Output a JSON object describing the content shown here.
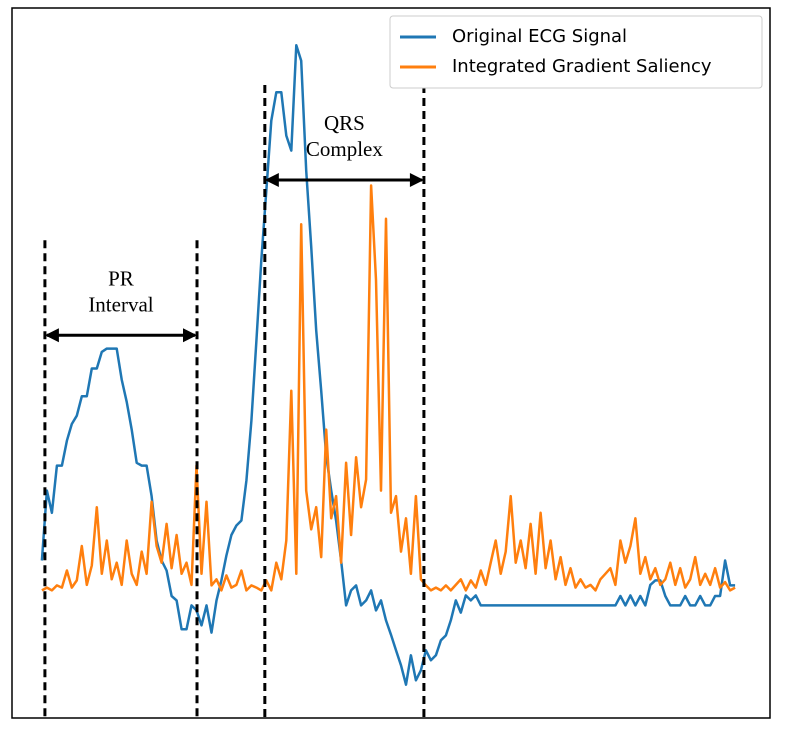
{
  "chart_data": {
    "type": "line",
    "x": [
      0,
      1,
      2,
      3,
      4,
      5,
      6,
      7,
      8,
      9,
      10,
      11,
      12,
      13,
      14,
      15,
      16,
      17,
      18,
      19,
      20,
      21,
      22,
      23,
      24,
      25,
      26,
      27,
      28,
      29,
      30,
      31,
      32,
      33,
      34,
      35,
      36,
      37,
      38,
      39,
      40,
      41,
      42,
      43,
      44,
      45,
      46,
      47,
      48,
      49,
      50,
      51,
      52,
      53,
      54,
      55,
      56,
      57,
      58,
      59,
      60,
      61,
      62,
      63,
      64,
      65,
      66,
      67,
      68,
      69,
      70,
      71,
      72,
      73,
      74,
      75,
      76,
      77,
      78,
      79,
      80,
      81,
      82,
      83,
      84,
      85,
      86,
      87,
      88,
      89,
      90,
      91,
      92,
      93,
      94,
      95,
      96,
      97,
      98,
      99,
      100,
      101,
      102,
      103,
      104,
      105,
      106,
      107,
      108,
      109,
      110,
      111,
      112,
      113,
      114,
      115,
      116,
      117,
      118,
      119,
      120,
      121,
      122,
      123,
      124,
      125,
      126,
      127,
      128,
      129,
      130,
      131,
      132,
      133,
      134,
      135,
      136,
      137,
      138,
      139
    ],
    "series": [
      {
        "name": "Original ECG Signal",
        "color": "#1f77b4",
        "values": [
          5.4,
          18,
          14,
          22.5,
          22.5,
          27,
          30,
          31.5,
          35,
          35,
          40,
          40,
          43,
          43.6,
          43.6,
          43.6,
          38,
          34,
          29,
          23,
          22.5,
          22.5,
          17,
          9,
          5.4,
          3.6,
          -1,
          -1.8,
          -7,
          -7,
          -2.7,
          -3.6,
          -6.3,
          -2.7,
          -7.6,
          -1.8,
          1.8,
          6.3,
          10,
          11.7,
          12.6,
          19.8,
          30.6,
          45,
          59.5,
          72,
          84.7,
          89.8,
          89.8,
          82,
          79.3,
          98.3,
          95.5,
          75.7,
          62,
          46.9,
          36,
          24.3,
          18,
          12.6,
          5.4,
          -2.7,
          0,
          0.9,
          -2.7,
          -1.8,
          0,
          -3.6,
          -1.8,
          -5.4,
          -8,
          -10.8,
          -13.5,
          -17,
          -11.7,
          -16.2,
          -14.4,
          -10.8,
          -12.6,
          -11.7,
          -9,
          -8.1,
          -5.4,
          -1.8,
          -4,
          -0.9,
          -1.8,
          -0.9,
          -2.7,
          -2.7,
          -2.7,
          -2.7,
          -2.7,
          -2.7,
          -2.7,
          -2.7,
          -2.7,
          -2.7,
          -2.7,
          -2.7,
          -2.7,
          -2.7,
          -2.7,
          -2.7,
          -2.7,
          -2.7,
          -2.7,
          -2.7,
          -2.7,
          -2.7,
          -2.7,
          -2.7,
          -2.7,
          -2.7,
          -2.7,
          -2.7,
          -1,
          -2.7,
          -0.9,
          -2.7,
          -1,
          -2.7,
          1,
          1.8,
          1.8,
          -1,
          -2.7,
          -2.7,
          -2.7,
          -1,
          -2.7,
          -2.7,
          -1,
          -2.7,
          -2.7,
          -1,
          -1,
          5.4,
          0.9,
          0.9
        ]
      },
      {
        "name": "Integrated Gradient Saliency",
        "color": "#ff7f0e",
        "values": [
          0,
          0.5,
          0,
          0.9,
          0.5,
          3.6,
          0.5,
          1.8,
          8,
          1,
          4.5,
          15,
          3,
          9,
          2,
          5,
          1,
          9,
          3,
          1,
          7,
          3,
          16,
          8,
          5,
          12,
          4,
          10,
          3,
          5,
          1,
          22.5,
          3,
          16,
          0.9,
          2,
          0,
          2.7,
          0.5,
          1,
          3.6,
          0,
          0.9,
          0.5,
          0,
          1.8,
          0,
          5,
          2,
          9,
          36,
          3,
          66,
          18,
          11,
          15,
          6,
          29,
          13,
          17,
          5,
          23,
          10,
          24,
          15,
          20,
          73,
          56,
          18,
          67,
          14,
          17,
          7,
          13,
          3,
          17,
          2,
          0.9,
          0,
          0.5,
          0,
          0.9,
          0,
          1,
          2,
          0,
          1.8,
          0.5,
          3.6,
          1,
          5,
          9,
          3,
          7,
          17,
          5,
          9,
          4,
          12,
          3,
          14,
          4,
          9,
          2,
          6,
          1,
          4,
          0.5,
          2,
          0.5,
          1,
          0,
          2,
          3,
          4,
          1,
          9,
          5,
          8,
          13,
          3,
          6,
          2,
          4,
          1,
          2,
          5,
          1,
          4,
          0.5,
          2,
          6,
          1,
          3,
          1,
          4,
          0.5,
          1.5,
          0,
          0.5
        ]
      }
    ],
    "xlim": [
      -6,
      146
    ],
    "ylim": [
      -23,
      105
    ],
    "legend": "upper right",
    "annotations": [
      {
        "label": [
          "PR",
          "Interval"
        ],
        "span": [
          0.6,
          31.1
        ],
        "y": 46
      },
      {
        "label": [
          "QRS",
          "Complex"
        ],
        "span": [
          44.7,
          76.6
        ],
        "y": 74
      }
    ]
  }
}
